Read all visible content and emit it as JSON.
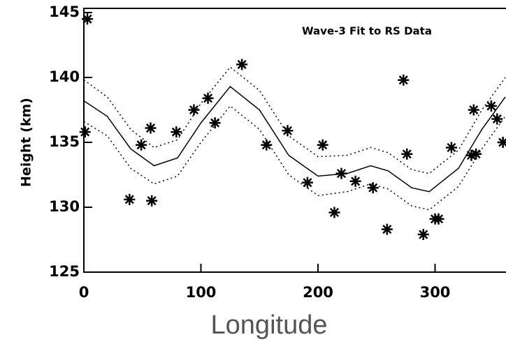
{
  "chart_data": {
    "type": "scatter",
    "annotation": "Wave-3 Fit to RS Data",
    "x_label": "Longitude",
    "y_label": "Height (km)",
    "xlim": [
      0,
      360
    ],
    "ylim": [
      125,
      145
    ],
    "xticks": [
      0,
      100,
      200,
      300
    ],
    "yticks": [
      125,
      130,
      135,
      140,
      145
    ],
    "series": [
      {
        "type": "scatter",
        "color": "#000000",
        "x": [
          3,
          1,
          39,
          49,
          57,
          58,
          79,
          94,
          106,
          112,
          135,
          156,
          174,
          191,
          204,
          214,
          220,
          232,
          247,
          259,
          273,
          276,
          290,
          300,
          303,
          314,
          333,
          331,
          335,
          348,
          353,
          358
        ],
        "values": [
          144.5,
          135.8,
          130.6,
          134.8,
          136.1,
          130.5,
          135.8,
          137.5,
          138.4,
          136.5,
          141.0,
          134.8,
          135.9,
          131.9,
          134.8,
          129.6,
          132.6,
          132.0,
          131.5,
          128.3,
          139.8,
          134.1,
          127.9,
          129.1,
          129.1,
          134.6,
          137.5,
          134.0,
          134.1,
          137.8,
          136.8,
          135.0
        ]
      },
      {
        "type": "line",
        "color": "#000000",
        "dashed": false,
        "x": [
          0,
          20,
          40,
          60,
          80,
          100,
          125,
          150,
          175,
          200,
          225,
          245,
          260,
          280,
          295,
          320,
          340,
          360
        ],
        "values": [
          138.2,
          137.0,
          134.5,
          133.2,
          133.8,
          136.5,
          139.3,
          137.5,
          134.0,
          132.4,
          132.6,
          133.2,
          132.8,
          131.5,
          131.2,
          133.0,
          136.0,
          138.5
        ]
      },
      {
        "type": "line",
        "color": "#000000",
        "dashed": true,
        "x": [
          0,
          20,
          40,
          60,
          80,
          100,
          125,
          150,
          175,
          200,
          225,
          245,
          260,
          280,
          295,
          320,
          340,
          360
        ],
        "values": [
          139.8,
          138.5,
          136.0,
          134.6,
          135.2,
          138.0,
          140.8,
          139.0,
          135.5,
          133.9,
          134.0,
          134.6,
          134.2,
          132.9,
          132.6,
          134.4,
          137.5,
          140.0
        ]
      },
      {
        "type": "line",
        "color": "#000000",
        "dashed": true,
        "x": [
          0,
          20,
          40,
          60,
          80,
          100,
          125,
          150,
          175,
          200,
          225,
          245,
          260,
          280,
          295,
          320,
          340,
          360
        ],
        "values": [
          136.6,
          135.5,
          133.0,
          131.8,
          132.4,
          135.0,
          137.8,
          136.0,
          132.5,
          130.9,
          131.2,
          131.8,
          131.4,
          130.1,
          129.8,
          131.6,
          134.5,
          137.0
        ]
      }
    ]
  }
}
